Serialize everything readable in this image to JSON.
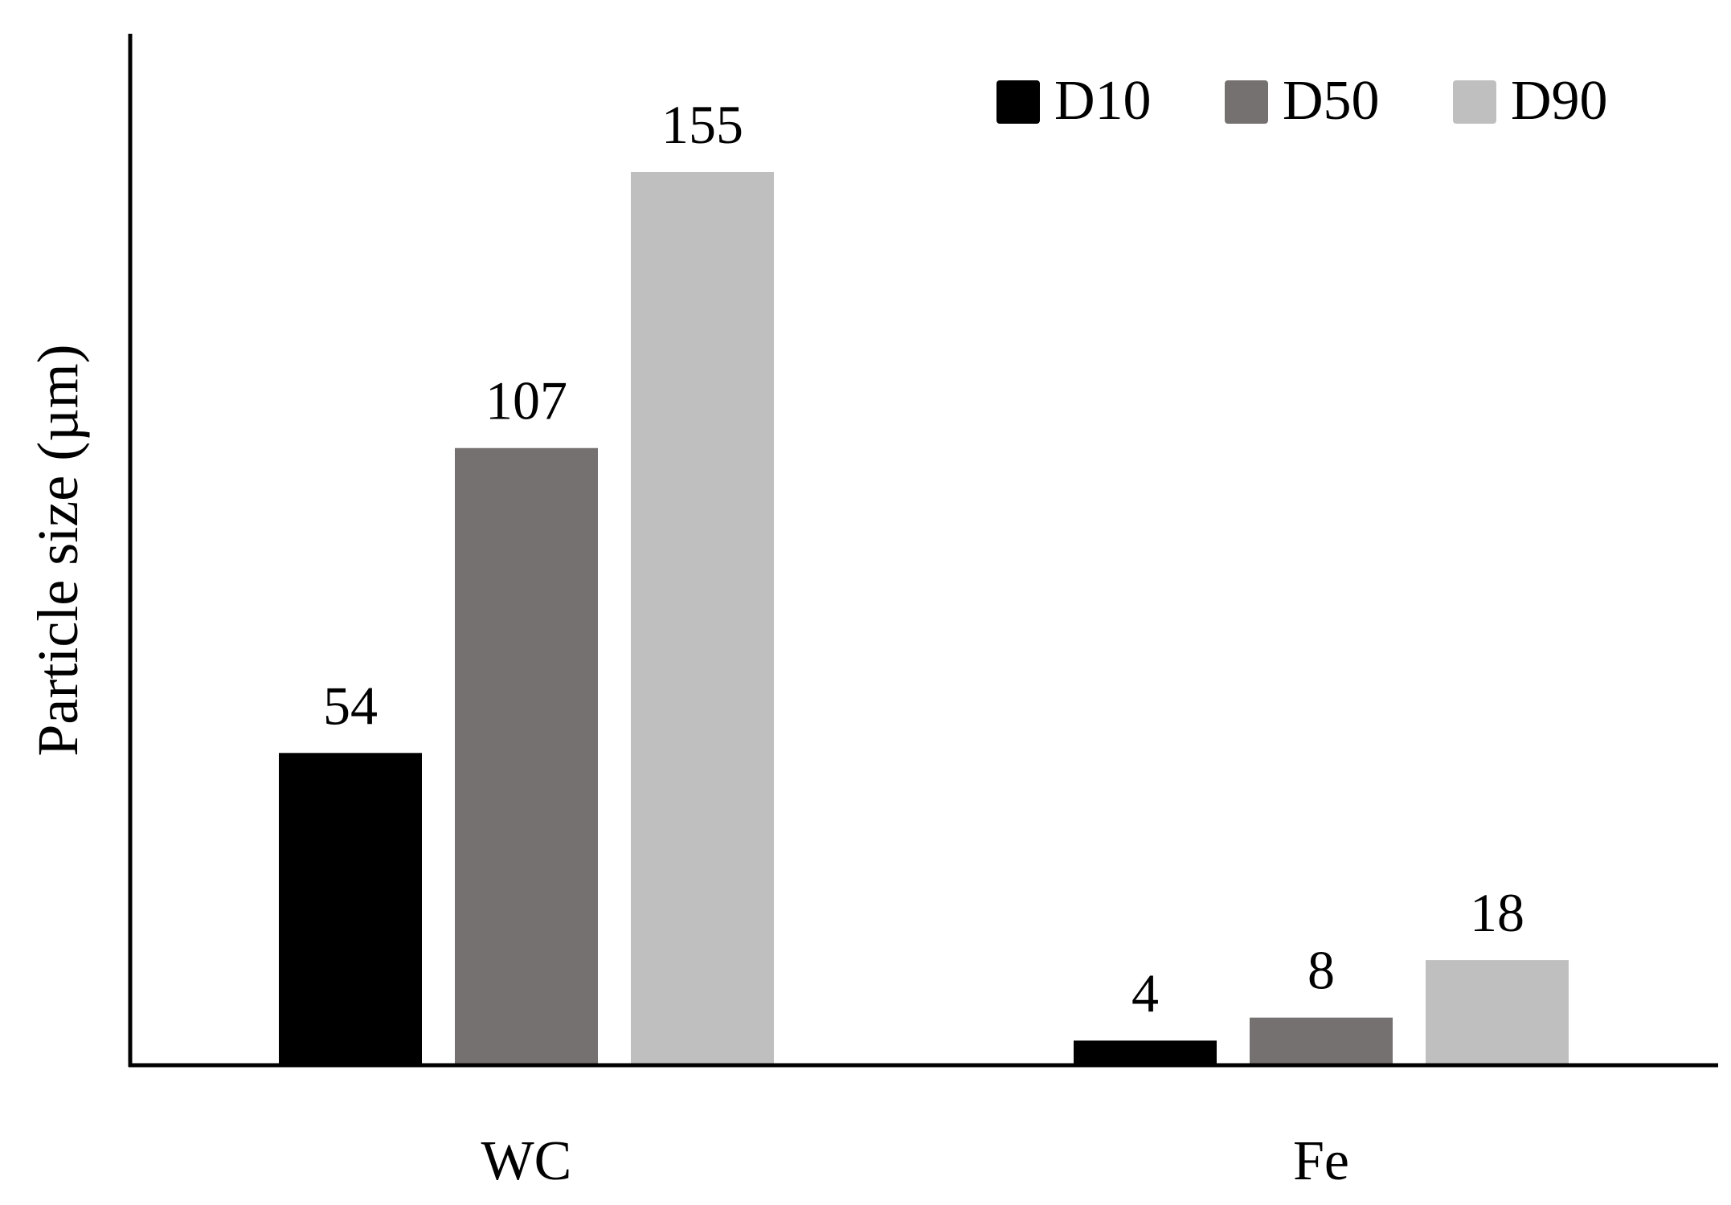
{
  "chart_data": {
    "type": "bar",
    "categories": [
      "WC",
      "Fe"
    ],
    "series": [
      {
        "name": "D10",
        "values": [
          54,
          4
        ],
        "color": "#000000"
      },
      {
        "name": "D50",
        "values": [
          107,
          8
        ],
        "color": "#767171"
      },
      {
        "name": "D90",
        "values": [
          155,
          18
        ],
        "color": "#bfbfbf"
      }
    ],
    "title": "",
    "xlabel": "",
    "ylabel": "Particle size (µm)",
    "ylim": [
      0,
      180
    ],
    "grid": false,
    "legend_position": "top-right",
    "data_labels": true
  }
}
